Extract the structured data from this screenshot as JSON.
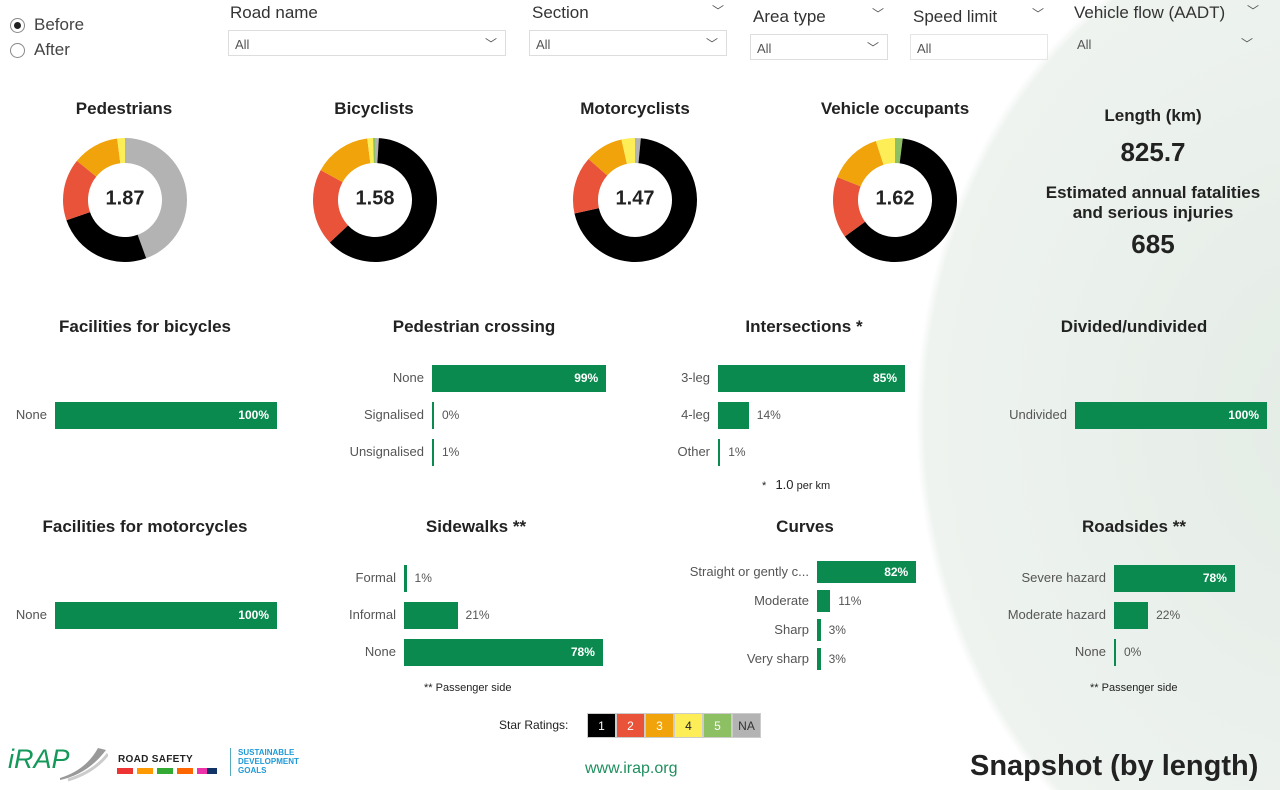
{
  "scenario": {
    "options": [
      {
        "label": "Before",
        "selected": true
      },
      {
        "label": "After",
        "selected": false
      }
    ]
  },
  "filters": [
    {
      "label": "Road name",
      "value": "All"
    },
    {
      "label": "Section",
      "value": "All"
    },
    {
      "label": "Area type",
      "value": "All"
    },
    {
      "label": "Speed limit",
      "value": "All"
    },
    {
      "label": "Vehicle flow (AADT)",
      "value": "All"
    }
  ],
  "colors": {
    "star1": "#000000",
    "star2": "#e8533a",
    "star3": "#f0a30a",
    "star4": "#fdee58",
    "star5": "#8cc063",
    "na": "#b3b3b3",
    "bar": "#0b8a4f"
  },
  "donuts": [
    {
      "title": "Pedestrians",
      "score": "1.87",
      "shares": {
        "na": 44,
        "star1": 25,
        "star2": 16,
        "star3": 12,
        "star4": 2,
        "star5": 0
      }
    },
    {
      "title": "Bicyclists",
      "score": "1.58",
      "shares": {
        "na": 1,
        "star1": 62,
        "star2": 20,
        "star3": 15,
        "star4": 1.5,
        "star5": 0.5
      }
    },
    {
      "title": "Motorcyclists",
      "score": "1.47",
      "shares": {
        "na": 1.5,
        "star1": 70,
        "star2": 15,
        "star3": 10,
        "star4": 3.5,
        "star5": 0
      }
    },
    {
      "title": "Vehicle occupants",
      "score": "1.62",
      "shares": {
        "na": 0,
        "star1": 63,
        "star2": 16,
        "star3": 14,
        "star4": 5,
        "star5": 2
      }
    }
  ],
  "kpis": {
    "length_label": "Length (km)",
    "length_value": "825.7",
    "fsi_label": "Estimated annual fatalities and serious injuries",
    "fsi_value": "685"
  },
  "bar_charts": [
    {
      "title": "Facilities for bicycles",
      "rows": [
        {
          "label": "None",
          "value": 100
        }
      ]
    },
    {
      "title": "Pedestrian crossing",
      "rows": [
        {
          "label": "None",
          "value": 99
        },
        {
          "label": "Signalised",
          "value": 0
        },
        {
          "label": "Unsignalised",
          "value": 1
        }
      ]
    },
    {
      "title": "Intersections *",
      "rows": [
        {
          "label": "3-leg",
          "value": 85
        },
        {
          "label": "4-leg",
          "value": 14
        },
        {
          "label": "Other",
          "value": 1
        }
      ]
    },
    {
      "title": "Divided/undivided",
      "rows": [
        {
          "label": "Undivided",
          "value": 100
        }
      ]
    },
    {
      "title": "Facilities for motorcycles",
      "rows": [
        {
          "label": "None",
          "value": 100
        }
      ]
    },
    {
      "title": "Sidewalks **",
      "rows": [
        {
          "label": "Formal",
          "value": 1
        },
        {
          "label": "Informal",
          "value": 21
        },
        {
          "label": "None",
          "value": 78
        }
      ]
    },
    {
      "title": "Curves",
      "rows": [
        {
          "label": "Straight or gently c...",
          "value": 82
        },
        {
          "label": "Moderate",
          "value": 11
        },
        {
          "label": "Sharp",
          "value": 3
        },
        {
          "label": "Very sharp",
          "value": 3
        }
      ]
    },
    {
      "title": "Roadsides **",
      "rows": [
        {
          "label": "Severe hazard",
          "value": 78
        },
        {
          "label": "Moderate hazard",
          "value": 22
        },
        {
          "label": "None",
          "value": 0
        }
      ]
    }
  ],
  "notes": {
    "intersections_star": "*",
    "intersections_value": "1.0",
    "intersections_unit": "per km",
    "passenger_side_1": "** Passenger side",
    "passenger_side_2": "** Passenger side"
  },
  "legend": {
    "label": "Star Ratings:",
    "items": [
      "1",
      "2",
      "3",
      "4",
      "5",
      "NA"
    ]
  },
  "footer": {
    "url": "www.irap.org",
    "title": "Snapshot (by length)",
    "logo_irap": "iRAP",
    "logo_road_safety": "ROAD SAFETY",
    "logo_sdg": "SUSTAINABLE DEVELOPMENT GOALS"
  }
}
